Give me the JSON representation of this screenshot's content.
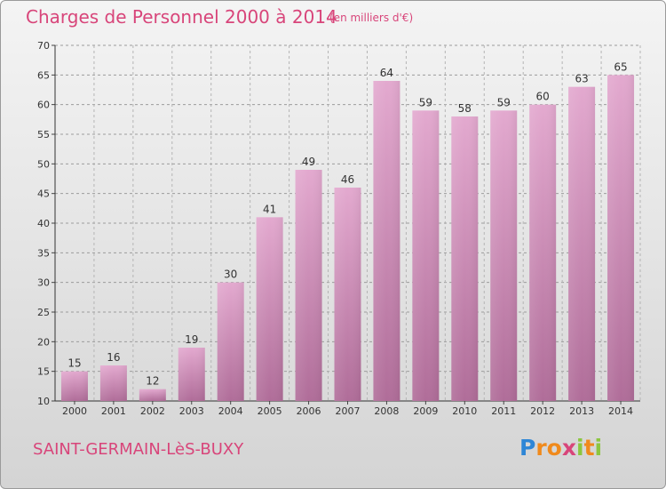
{
  "title": "Charges de Personnel 2000 à 2014",
  "subtitle": "(en milliers d'€)",
  "commune": "SAINT-GERMAIN-LèS-BUXY",
  "logo": {
    "text": "Proxiti",
    "letters": [
      {
        "ch": "P",
        "color": "#2e86d6"
      },
      {
        "ch": "r",
        "color": "#f08a1c"
      },
      {
        "ch": "o",
        "color": "#f08a1c"
      },
      {
        "ch": "x",
        "color": "#d8457a"
      },
      {
        "ch": "i",
        "color": "#8cc63f"
      },
      {
        "ch": "t",
        "color": "#f08a1c"
      },
      {
        "ch": "i",
        "color": "#8cc63f"
      }
    ]
  },
  "colors": {
    "bar_top": "#e3a9cf",
    "bar_bottom": "#b06d99",
    "accent": "#d8457a"
  },
  "chart_data": {
    "type": "bar",
    "title": "Charges de Personnel 2000 à 2014",
    "subtitle": "(en milliers d'€)",
    "categories": [
      "2000",
      "2001",
      "2002",
      "2003",
      "2004",
      "2005",
      "2006",
      "2007",
      "2008",
      "2009",
      "2010",
      "2011",
      "2012",
      "2013",
      "2014"
    ],
    "values": [
      15,
      16,
      12,
      19,
      30,
      41,
      49,
      46,
      64,
      59,
      58,
      59,
      60,
      63,
      65
    ],
    "ylim": [
      10,
      70
    ],
    "yticks": [
      10,
      15,
      20,
      25,
      30,
      35,
      40,
      45,
      50,
      55,
      60,
      65,
      70
    ],
    "grid": true,
    "legend": "none"
  }
}
